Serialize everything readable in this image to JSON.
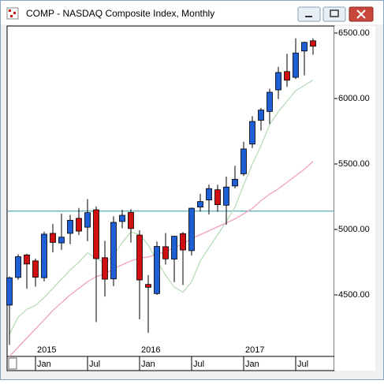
{
  "window_title": "COMP - NASDAQ Composite Index, Monthly",
  "chart_data": {
    "type": "candlestick",
    "categories": [
      null,
      null,
      null,
      "Jan",
      null,
      null,
      null,
      null,
      null,
      "Jul",
      null,
      null,
      null,
      null,
      null,
      "Jan",
      null,
      null,
      null,
      null,
      null,
      "Jul",
      null,
      null,
      null,
      null,
      null,
      "Jan",
      null,
      null,
      null,
      null,
      null,
      "Jul",
      null,
      null
    ],
    "year_labels": [
      "2015",
      "2016",
      "2017"
    ],
    "open": [
      4422,
      4633,
      4805,
      4760,
      4631,
      4970,
      4897,
      4970,
      5085,
      5017,
      5150,
      4784,
      4622,
      5061,
      5130,
      4957,
      4580,
      4510,
      4868,
      4773,
      4968,
      4838,
      5171,
      5225,
      5303,
      5185,
      5332,
      5425,
      5652,
      5834,
      5901,
      6066,
      6206,
      6162,
      6363,
      6441
    ],
    "high": [
      4641,
      4810,
      4814,
      4777,
      4983,
      5042,
      5120,
      5111,
      5164,
      5232,
      5175,
      4913,
      5100,
      5150,
      5155,
      4993,
      4651,
      4907,
      4973,
      4952,
      4980,
      5167,
      5272,
      5343,
      5342,
      5403,
      5487,
      5670,
      5866,
      5928,
      6075,
      6242,
      6342,
      6460,
      6435,
      6459
    ],
    "low": [
      4117,
      4616,
      4547,
      4563,
      4604,
      4825,
      4844,
      4888,
      4958,
      4910,
      4292,
      4487,
      4567,
      5010,
      4900,
      4313,
      4210,
      4500,
      4732,
      4597,
      4575,
      4800,
      5136,
      5114,
      5135,
      5035,
      5314,
      5408,
      5622,
      5756,
      5805,
      5996,
      6089,
      6150,
      6177,
      6335
    ],
    "close": [
      4631,
      4792,
      4736,
      4635,
      4964,
      4901,
      4941,
      5070,
      4987,
      5128,
      4777,
      4620,
      5054,
      5108,
      5007,
      4614,
      4558,
      4870,
      4775,
      4948,
      4843,
      5162,
      5213,
      5312,
      5189,
      5324,
      5383,
      5615,
      5825,
      5912,
      6048,
      6199,
      6140,
      6348,
      6429,
      6400
    ],
    "up_color": "#1f5fd6",
    "down_color": "#d01010",
    "lines": [
      {
        "color": "#b8dcb8",
        "values": [
          4200,
          4330,
          4390,
          4420,
          4480,
          4550,
          4620,
          4690,
          4750,
          4820,
          4780,
          4740,
          4800,
          4900,
          4980,
          4960,
          4880,
          4760,
          4650,
          4560,
          4520,
          4600,
          4760,
          4860,
          4960,
          5060,
          5170,
          5340,
          5500,
          5640,
          5800,
          5900,
          5980,
          6060,
          6100,
          6140
        ]
      },
      {
        "color": "#f0a0c0",
        "values": [
          4030,
          4100,
          4170,
          4240,
          4310,
          4380,
          4440,
          4500,
          4550,
          4600,
          4640,
          4660,
          4700,
          4730,
          4760,
          4780,
          4790,
          4810,
          4830,
          4860,
          4890,
          4930,
          4960,
          4990,
          5020,
          5050,
          5080,
          5120,
          5160,
          5220,
          5270,
          5310,
          5360,
          5410,
          5460,
          5520
        ]
      }
    ],
    "hline": 5140,
    "hline_color": "#2a9a9a",
    "ylim": [
      4030,
      6554
    ],
    "yticks": [
      {
        "value": 4500,
        "label": "4500.00"
      },
      {
        "value": 5000,
        "label": "5000.00"
      },
      {
        "value": 5500,
        "label": "5500.00"
      },
      {
        "value": 6000,
        "label": "6000.00"
      },
      {
        "value": 6500,
        "label": "6500.00"
      }
    ]
  }
}
